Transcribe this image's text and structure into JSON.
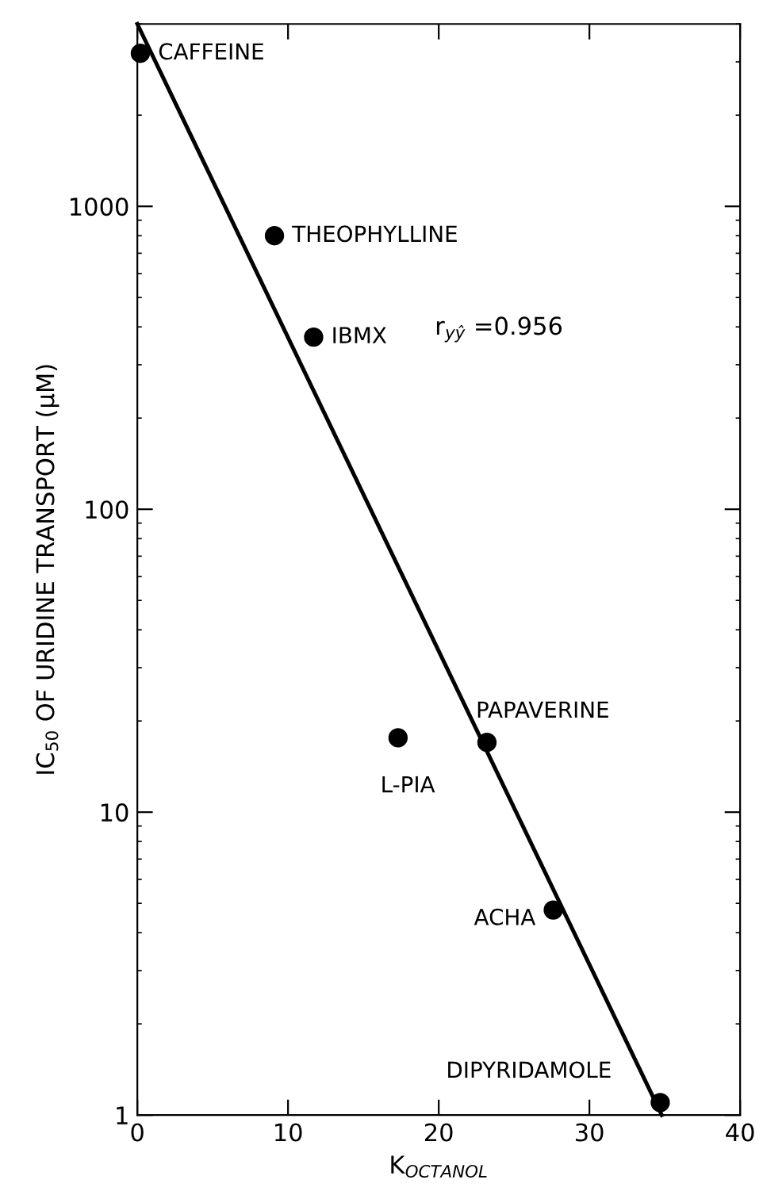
{
  "chart_data": {
    "type": "scatter",
    "xlabel": "K$_{OCTANOL}$",
    "ylabel": "IC$_{50}$ OF URIDINE TRANSPORT (μM)",
    "x": [
      0.2,
      9.1,
      11.7,
      17.3,
      23.2,
      27.6,
      34.7
    ],
    "series": [
      {
        "color": "#000000",
        "marker": "circle",
        "values": [
          3200,
          800,
          370,
          17.6,
          17,
          4.75,
          1.1
        ]
      },
      {
        "type": "line",
        "color": "#000000",
        "marker": "none",
        "line_style": "solid",
        "x": [
          0,
          34.8
        ],
        "values": [
          4000,
          1
        ]
      }
    ],
    "annotations": [
      {
        "text": "CAFFEINE",
        "x": 0.2,
        "y": 3200
      },
      {
        "text": "THEOPHYLLINE",
        "x": 9.1,
        "y": 800
      },
      {
        "text": "IBMX",
        "x": 11.7,
        "y": 370
      },
      {
        "text": "L-PIA",
        "x": 17.3,
        "y": 17.6
      },
      {
        "text": "PAPAVERINE",
        "x": 23.2,
        "y": 17
      },
      {
        "text": "ACHA",
        "x": 27.6,
        "y": 4.75
      },
      {
        "text": "DIPYRIDAMOLE",
        "x": 34.7,
        "y": 1.1
      },
      "r$_{yŷ}$ =0.956"
    ],
    "log": "y",
    "xlim": [
      0,
      40
    ],
    "ylim": [
      1,
      4000
    ],
    "xticks": [
      0,
      10,
      20,
      30,
      40
    ],
    "yticks": [
      1,
      10,
      100,
      1000
    ],
    "grid": false,
    "legend": false
  }
}
